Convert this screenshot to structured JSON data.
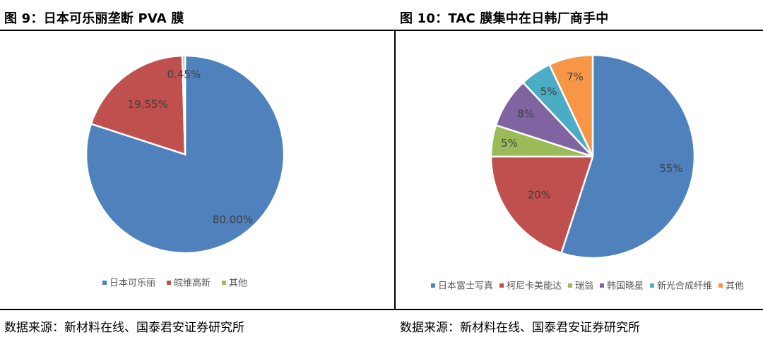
{
  "chart_data": [
    {
      "type": "pie",
      "title": "图 9：日本可乐丽垄断 PVA 膜",
      "categories": [
        "日本可乐丽",
        "皖维高新",
        "其他"
      ],
      "values": [
        80.0,
        19.55,
        0.45
      ],
      "labels": [
        "80.00%",
        "19.55%",
        "0.45%"
      ],
      "colors": [
        "#4F81BD",
        "#C0504D",
        "#9BBB59"
      ],
      "legend": "bottom",
      "source": "数据来源：新材料在线、国泰君安证券研究所"
    },
    {
      "type": "pie",
      "title": "图 10：TAC 膜集中在日韩厂商手中",
      "categories": [
        "日本富士写真",
        "柯尼卡美能达",
        "瑞翁",
        "韩国晓星",
        "新光合成纤维",
        "其他"
      ],
      "values": [
        55,
        20,
        5,
        8,
        5,
        7
      ],
      "labels": [
        "55%",
        "20%",
        "5%",
        "8%",
        "5%",
        "7%"
      ],
      "colors": [
        "#4F81BD",
        "#C0504D",
        "#9BBB59",
        "#8064A2",
        "#4BACC6",
        "#F79646"
      ],
      "legend": "bottom",
      "source": "数据来源：新材料在线、国泰君安证券研究所"
    }
  ]
}
